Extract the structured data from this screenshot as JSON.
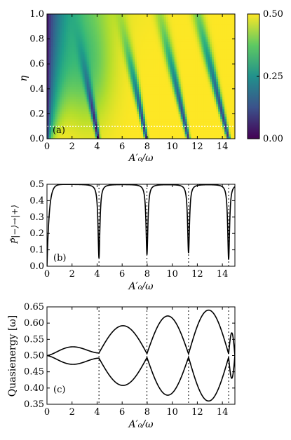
{
  "chart_data": [
    {
      "type": "heatmap",
      "panel_label": "(a)",
      "xlabel": "A′₀/ω",
      "ylabel": "η",
      "xlim": [
        0,
        15
      ],
      "ylim": [
        0,
        1.0
      ],
      "xticks": [
        "0",
        "2",
        "4",
        "6",
        "8",
        "10",
        "12",
        "14"
      ],
      "yticks": [
        "0.0",
        "0.2",
        "0.4",
        "0.6",
        "0.8",
        "1.0"
      ],
      "colorbar": {
        "ticks": [
          "0.00",
          "0.25",
          "0.50"
        ],
        "range": [
          0,
          0.5
        ],
        "colormap": "viridis"
      },
      "cut_line_eta": 0.1,
      "resonance_centers": [
        4.1,
        7.95,
        11.3,
        14.5
      ]
    },
    {
      "type": "line",
      "panel_label": "(b)",
      "xlabel": "A′₀/ω",
      "ylabel": "P̄|−⟩→|+⟩",
      "xlim": [
        0,
        15
      ],
      "ylim": [
        0,
        0.5
      ],
      "xticks": [
        "0",
        "2",
        "4",
        "6",
        "8",
        "10",
        "12",
        "14"
      ],
      "yticks": [
        "0.0",
        "0.1",
        "0.2",
        "0.3",
        "0.4",
        "0.5"
      ],
      "dips": [
        {
          "x": 4.15,
          "min": 0.05
        },
        {
          "x": 7.98,
          "min": 0.07
        },
        {
          "x": 11.3,
          "min": 0.08
        },
        {
          "x": 14.5,
          "min": 0.04
        }
      ],
      "vlines": [
        4.15,
        7.98,
        11.3,
        14.5
      ]
    },
    {
      "type": "line",
      "panel_label": "(c)",
      "xlabel": "A′₀/ω",
      "ylabel": "Quasienergy [ω]",
      "xlim": [
        0,
        15
      ],
      "ylim": [
        0.35,
        0.65
      ],
      "xticks": [
        "0",
        "2",
        "4",
        "6",
        "8",
        "10",
        "12",
        "14"
      ],
      "yticks": [
        "0.35",
        "0.40",
        "0.45",
        "0.50",
        "0.55",
        "0.60",
        "0.65"
      ],
      "upper_branch_peaks": [
        {
          "x": 3.0,
          "y": 0.527
        },
        {
          "x": 6.4,
          "y": 0.592
        },
        {
          "x": 9.7,
          "y": 0.622
        },
        {
          "x": 13.0,
          "y": 0.64
        }
      ],
      "avoided_crossings": [
        {
          "x": 4.15,
          "gap_half": 0.008
        },
        {
          "x": 7.98,
          "gap_half": 0.006
        },
        {
          "x": 11.3,
          "gap_half": 0.005
        },
        {
          "x": 14.5,
          "gap_half": 0.005
        }
      ],
      "vlines": [
        4.15,
        7.98,
        11.3,
        14.5
      ]
    }
  ]
}
